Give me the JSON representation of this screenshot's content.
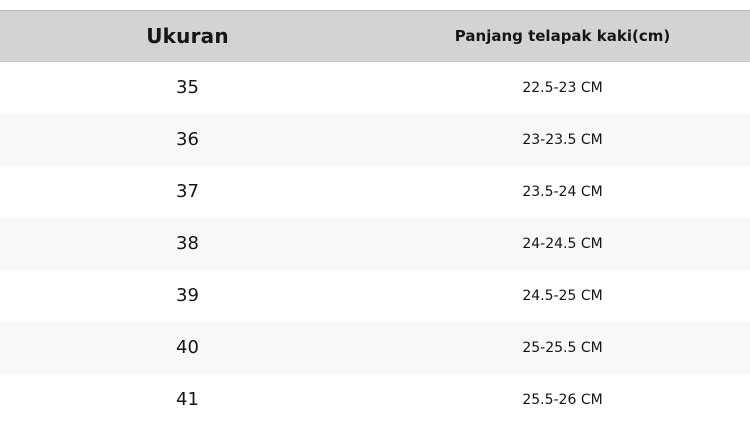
{
  "colors": {
    "header_bg": "#d3d3d3",
    "row_bg": "#ffffff",
    "row_alt_bg": "#f8f8f8",
    "text": "#151515"
  },
  "table": {
    "columns": {
      "size_label": "Ukuran",
      "length_label": "Panjang telapak kaki(cm)"
    },
    "rows": [
      {
        "size": "35",
        "length": "22.5-23 CM"
      },
      {
        "size": "36",
        "length": "23-23.5 CM"
      },
      {
        "size": "37",
        "length": "23.5-24 CM"
      },
      {
        "size": "38",
        "length": "24-24.5 CM"
      },
      {
        "size": "39",
        "length": "24.5-25 CM"
      },
      {
        "size": "40",
        "length": "25-25.5 CM"
      },
      {
        "size": "41",
        "length": "25.5-26 CM"
      }
    ]
  }
}
